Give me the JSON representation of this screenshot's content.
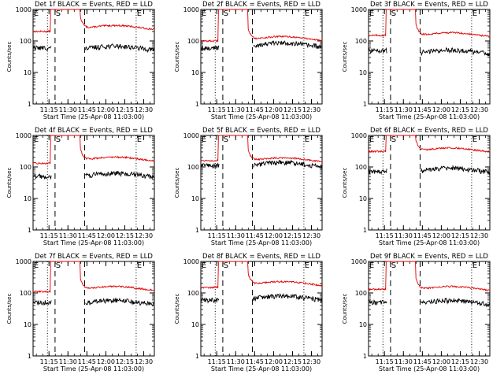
{
  "colors": {
    "events": "#000000",
    "lld": "#e00000",
    "axis": "#000000"
  },
  "chart_data": [
    {
      "type": "line",
      "title": "Det 1f BLACK = Events, RED = LLD",
      "ylabel": "Counts/sec",
      "xlabel": "Start Time (25-Apr-08 11:03:00)",
      "yscale": "log",
      "ylim": [
        1,
        1000
      ],
      "yticks": [
        "1",
        "10",
        "100",
        "1000"
      ],
      "xlim": [
        11.04,
        12.64
      ],
      "xticks": [
        "11:15",
        "11:30",
        "11:45",
        "12:00",
        "12:15",
        "12:30"
      ],
      "markers": [
        "E",
        "S",
        "E"
      ],
      "dotted_lines": [
        11.23,
        12.4
      ],
      "dashed_lines": [
        11.33,
        11.72
      ],
      "series": [
        {
          "baseline_before": 200,
          "baseline_after": 270,
          "color_key": "lld"
        },
        {
          "baseline_before": 60,
          "baseline_after": 60,
          "color_key": "events"
        }
      ]
    },
    {
      "type": "line",
      "title": "Det 2f BLACK = Events, RED = LLD",
      "ylabel": "Counts/sec",
      "xlabel": "Start Time (25-Apr-08 11:03:00)",
      "yscale": "log",
      "ylim": [
        1,
        1000
      ],
      "yticks": [
        "1",
        "10",
        "100",
        "1000"
      ],
      "xlim": [
        11.04,
        12.64
      ],
      "xticks": [
        "11:15",
        "11:30",
        "11:45",
        "12:00",
        "12:15",
        "12:30"
      ],
      "markers": [
        "E",
        "S",
        "E"
      ],
      "dotted_lines": [
        11.23,
        12.4
      ],
      "dashed_lines": [
        11.33,
        11.72
      ],
      "series": [
        {
          "baseline_before": 100,
          "baseline_after": 120,
          "color_key": "lld"
        },
        {
          "baseline_before": 60,
          "baseline_after": 75,
          "color_key": "events"
        }
      ]
    },
    {
      "type": "line",
      "title": "Det 3f BLACK = Events, RED = LLD",
      "ylabel": "Counts/sec",
      "xlabel": "Start Time (25-Apr-08 11:03:00)",
      "yscale": "log",
      "ylim": [
        1,
        1000
      ],
      "yticks": [
        "1",
        "10",
        "100",
        "1000"
      ],
      "xlim": [
        11.04,
        12.64
      ],
      "xticks": [
        "11:15",
        "11:30",
        "11:45",
        "12:00",
        "12:15",
        "12:30"
      ],
      "markers": [
        "E",
        "S",
        "E"
      ],
      "dotted_lines": [
        11.23,
        12.4
      ],
      "dashed_lines": [
        11.33,
        11.72
      ],
      "series": [
        {
          "baseline_before": 150,
          "baseline_after": 160,
          "color_key": "lld"
        },
        {
          "baseline_before": 50,
          "baseline_after": 45,
          "color_key": "events"
        }
      ]
    },
    {
      "type": "line",
      "title": "Det 4f BLACK = Events, RED = LLD",
      "ylabel": "Counts/sec",
      "xlabel": "Start Time (25-Apr-08 11:03:00)",
      "yscale": "log",
      "ylim": [
        1,
        1000
      ],
      "yticks": [
        "1",
        "10",
        "100",
        "1000"
      ],
      "xlim": [
        11.04,
        12.64
      ],
      "xticks": [
        "11:15",
        "11:30",
        "11:45",
        "12:00",
        "12:15",
        "12:30"
      ],
      "markers": [
        "E",
        "S",
        "E"
      ],
      "dotted_lines": [
        11.23,
        12.4
      ],
      "dashed_lines": [
        11.33,
        11.72
      ],
      "series": [
        {
          "baseline_before": 130,
          "baseline_after": 180,
          "color_key": "lld"
        },
        {
          "baseline_before": 50,
          "baseline_after": 55,
          "color_key": "events"
        }
      ]
    },
    {
      "type": "line",
      "title": "Det 5f BLACK = Events, RED = LLD",
      "ylabel": "Counts/sec",
      "xlabel": "Start Time (25-Apr-08 11:03:00)",
      "yscale": "log",
      "ylim": [
        1,
        1000
      ],
      "yticks": [
        "1",
        "10",
        "100",
        "1000"
      ],
      "xlim": [
        11.04,
        12.64
      ],
      "xticks": [
        "11:15",
        "11:30",
        "11:45",
        "12:00",
        "12:15",
        "12:30"
      ],
      "markers": [
        "E",
        "S",
        "E"
      ],
      "dotted_lines": [
        11.23,
        12.4
      ],
      "dashed_lines": [
        11.33,
        11.72
      ],
      "series": [
        {
          "baseline_before": 160,
          "baseline_after": 170,
          "color_key": "lld"
        },
        {
          "baseline_before": 110,
          "baseline_after": 120,
          "color_key": "events"
        }
      ]
    },
    {
      "type": "line",
      "title": "Det 6f BLACK = Events, RED = LLD",
      "ylabel": "Counts/sec",
      "xlabel": "Start Time (25-Apr-08 11:03:00)",
      "yscale": "log",
      "ylim": [
        1,
        1000
      ],
      "yticks": [
        "1",
        "10",
        "100",
        "1000"
      ],
      "xlim": [
        11.04,
        12.64
      ],
      "xticks": [
        "11:15",
        "11:30",
        "11:45",
        "12:00",
        "12:15",
        "12:30"
      ],
      "markers": [
        "E",
        "S",
        "E"
      ],
      "dotted_lines": [
        11.23,
        12.4
      ],
      "dashed_lines": [
        11.33,
        11.72
      ],
      "series": [
        {
          "baseline_before": 310,
          "baseline_after": 350,
          "color_key": "lld"
        },
        {
          "baseline_before": 70,
          "baseline_after": 80,
          "color_key": "events"
        }
      ]
    },
    {
      "type": "line",
      "title": "Det 7f BLACK = Events, RED = LLD",
      "ylabel": "Counts/sec",
      "xlabel": "Start Time (25-Apr-08 11:03:00)",
      "yscale": "log",
      "ylim": [
        1,
        1000
      ],
      "yticks": [
        "1",
        "10",
        "100",
        "1000"
      ],
      "xlim": [
        11.04,
        12.64
      ],
      "xticks": [
        "11:15",
        "11:30",
        "11:45",
        "12:00",
        "12:15",
        "12:30"
      ],
      "markers": [
        "E",
        "S",
        "E"
      ],
      "dotted_lines": [
        11.23,
        12.4
      ],
      "dashed_lines": [
        11.33,
        11.72
      ],
      "series": [
        {
          "baseline_before": 110,
          "baseline_after": 140,
          "color_key": "lld"
        },
        {
          "baseline_before": 50,
          "baseline_after": 50,
          "color_key": "events"
        }
      ]
    },
    {
      "type": "line",
      "title": "Det 8f BLACK = Events, RED = LLD",
      "ylabel": "Counts/sec",
      "xlabel": "Start Time (25-Apr-08 11:03:00)",
      "yscale": "log",
      "ylim": [
        1,
        1000
      ],
      "yticks": [
        "1",
        "10",
        "100",
        "1000"
      ],
      "xlim": [
        11.04,
        12.64
      ],
      "xticks": [
        "11:15",
        "11:30",
        "11:45",
        "12:00",
        "12:15",
        "12:30"
      ],
      "markers": [
        "E",
        "S",
        "E"
      ],
      "dotted_lines": [
        11.23,
        12.4
      ],
      "dashed_lines": [
        11.33,
        11.72
      ],
      "series": [
        {
          "baseline_before": 150,
          "baseline_after": 200,
          "color_key": "lld"
        },
        {
          "baseline_before": 60,
          "baseline_after": 70,
          "color_key": "events"
        }
      ]
    },
    {
      "type": "line",
      "title": "Det 9f BLACK = Events, RED = LLD",
      "ylabel": "Counts/sec",
      "xlabel": "Start Time (25-Apr-08 11:03:00)",
      "yscale": "log",
      "ylim": [
        1,
        1000
      ],
      "yticks": [
        "1",
        "10",
        "100",
        "1000"
      ],
      "xlim": [
        11.04,
        12.64
      ],
      "xticks": [
        "11:15",
        "11:30",
        "11:45",
        "12:00",
        "12:15",
        "12:30"
      ],
      "markers": [
        "E",
        "S",
        "E"
      ],
      "dotted_lines": [
        11.23,
        12.4
      ],
      "dashed_lines": [
        11.33,
        11.72
      ],
      "series": [
        {
          "baseline_before": 130,
          "baseline_after": 140,
          "color_key": "lld"
        },
        {
          "baseline_before": 50,
          "baseline_after": 50,
          "color_key": "events"
        }
      ]
    }
  ]
}
